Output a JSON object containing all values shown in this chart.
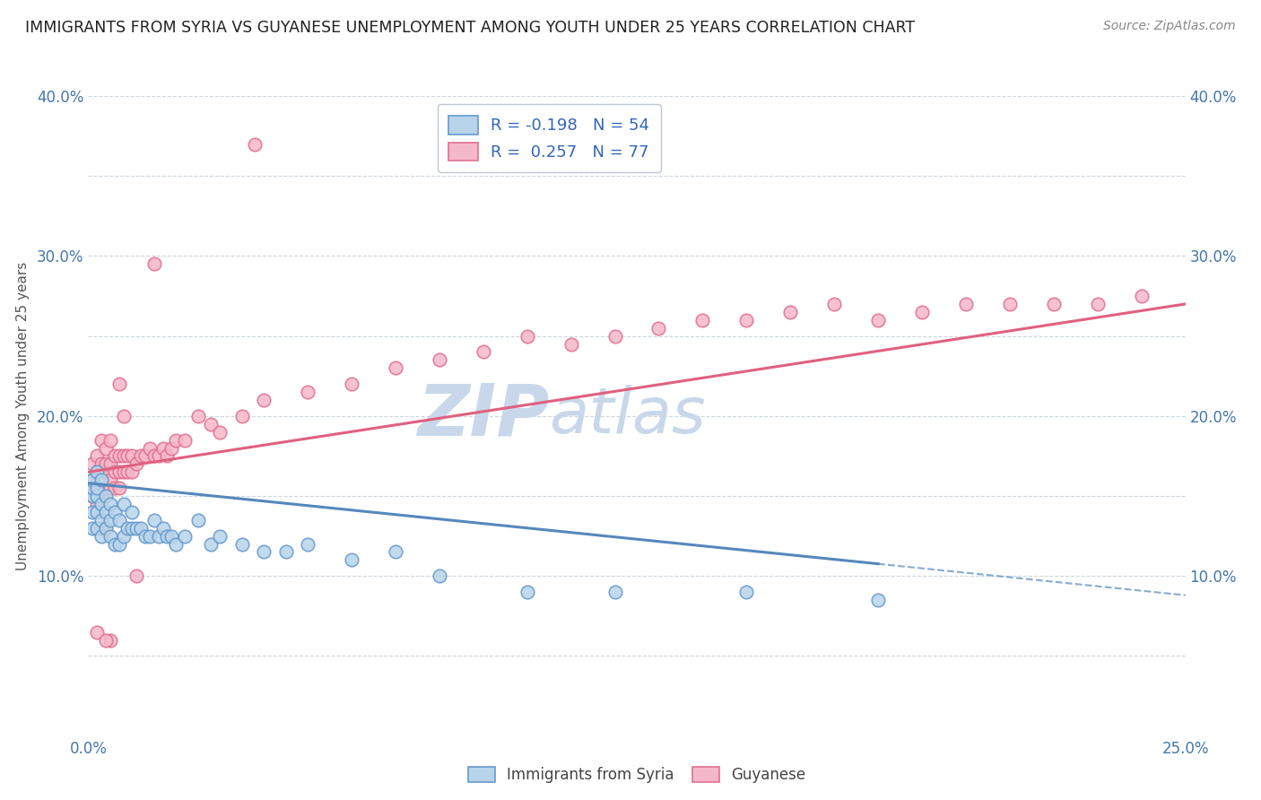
{
  "title": "IMMIGRANTS FROM SYRIA VS GUYANESE UNEMPLOYMENT AMONG YOUTH UNDER 25 YEARS CORRELATION CHART",
  "source": "Source: ZipAtlas.com",
  "ylabel": "Unemployment Among Youth under 25 years",
  "xlim": [
    0.0,
    0.25
  ],
  "ylim": [
    0.0,
    0.4
  ],
  "xticks": [
    0.0,
    0.025,
    0.05,
    0.075,
    0.1,
    0.125,
    0.15,
    0.175,
    0.2,
    0.225,
    0.25
  ],
  "yticks": [
    0.0,
    0.05,
    0.1,
    0.15,
    0.2,
    0.25,
    0.3,
    0.35,
    0.4
  ],
  "ytick_labels_left": [
    "",
    "",
    "10.0%",
    "",
    "20.0%",
    "",
    "30.0%",
    "",
    "40.0%"
  ],
  "ytick_labels_right": [
    "",
    "",
    "10.0%",
    "",
    "20.0%",
    "",
    "30.0%",
    "",
    "40.0%"
  ],
  "xtick_labels": [
    "0.0%",
    "",
    "",
    "",
    "",
    "",
    "",
    "",
    "",
    "",
    "25.0%"
  ],
  "legend_syria_R": "-0.198",
  "legend_syria_N": "54",
  "legend_guyanese_R": "0.257",
  "legend_guyanese_N": "77",
  "color_syria_fill": "#b8d4ea",
  "color_syria_edge": "#6699cc",
  "color_guyanese_fill": "#f5b8c8",
  "color_guyanese_edge": "#e07090",
  "color_syria_trendline": "#5588bb",
  "color_guyanese_trendline": "#e06080",
  "color_title": "#222222",
  "color_source": "#888888",
  "color_watermark": "#c8d8e8",
  "syria_x": [
    0.001,
    0.001,
    0.001,
    0.001,
    0.001,
    0.002,
    0.002,
    0.002,
    0.002,
    0.002,
    0.003,
    0.003,
    0.003,
    0.003,
    0.004,
    0.004,
    0.004,
    0.005,
    0.005,
    0.005,
    0.006,
    0.006,
    0.007,
    0.007,
    0.008,
    0.008,
    0.009,
    0.01,
    0.01,
    0.011,
    0.012,
    0.013,
    0.014,
    0.015,
    0.016,
    0.017,
    0.018,
    0.019,
    0.02,
    0.022,
    0.025,
    0.028,
    0.03,
    0.035,
    0.04,
    0.045,
    0.05,
    0.06,
    0.07,
    0.08,
    0.1,
    0.12,
    0.15,
    0.18
  ],
  "syria_y": [
    0.13,
    0.14,
    0.15,
    0.155,
    0.16,
    0.13,
    0.14,
    0.15,
    0.155,
    0.165,
    0.125,
    0.135,
    0.145,
    0.16,
    0.13,
    0.14,
    0.15,
    0.125,
    0.135,
    0.145,
    0.12,
    0.14,
    0.12,
    0.135,
    0.125,
    0.145,
    0.13,
    0.13,
    0.14,
    0.13,
    0.13,
    0.125,
    0.125,
    0.135,
    0.125,
    0.13,
    0.125,
    0.125,
    0.12,
    0.125,
    0.135,
    0.12,
    0.125,
    0.12,
    0.115,
    0.115,
    0.12,
    0.11,
    0.115,
    0.1,
    0.09,
    0.09,
    0.09,
    0.085
  ],
  "guyanese_x": [
    0.001,
    0.001,
    0.001,
    0.001,
    0.002,
    0.002,
    0.002,
    0.002,
    0.003,
    0.003,
    0.003,
    0.003,
    0.004,
    0.004,
    0.004,
    0.004,
    0.005,
    0.005,
    0.005,
    0.005,
    0.006,
    0.006,
    0.006,
    0.007,
    0.007,
    0.007,
    0.008,
    0.008,
    0.009,
    0.009,
    0.01,
    0.01,
    0.011,
    0.012,
    0.013,
    0.014,
    0.015,
    0.016,
    0.017,
    0.018,
    0.019,
    0.02,
    0.022,
    0.025,
    0.028,
    0.03,
    0.035,
    0.04,
    0.05,
    0.06,
    0.07,
    0.08,
    0.09,
    0.1,
    0.11,
    0.12,
    0.13,
    0.14,
    0.15,
    0.16,
    0.17,
    0.18,
    0.19,
    0.2,
    0.21,
    0.22,
    0.23,
    0.24,
    0.038,
    0.015,
    0.005,
    0.002,
    0.003,
    0.004,
    0.008,
    0.007,
    0.011
  ],
  "guyanese_y": [
    0.15,
    0.155,
    0.16,
    0.17,
    0.145,
    0.155,
    0.165,
    0.175,
    0.15,
    0.165,
    0.17,
    0.185,
    0.155,
    0.165,
    0.17,
    0.18,
    0.155,
    0.16,
    0.17,
    0.185,
    0.155,
    0.165,
    0.175,
    0.155,
    0.165,
    0.175,
    0.165,
    0.175,
    0.165,
    0.175,
    0.165,
    0.175,
    0.17,
    0.175,
    0.175,
    0.18,
    0.175,
    0.175,
    0.18,
    0.175,
    0.18,
    0.185,
    0.185,
    0.2,
    0.195,
    0.19,
    0.2,
    0.21,
    0.215,
    0.22,
    0.23,
    0.235,
    0.24,
    0.25,
    0.245,
    0.25,
    0.255,
    0.26,
    0.26,
    0.265,
    0.27,
    0.26,
    0.265,
    0.27,
    0.27,
    0.27,
    0.27,
    0.275,
    0.37,
    0.295,
    0.06,
    0.065,
    0.13,
    0.06,
    0.2,
    0.22,
    0.1
  ],
  "syria_trend_x": [
    0.0,
    0.25
  ],
  "syria_trend_y": [
    0.158,
    0.088
  ],
  "guyanese_trend_x": [
    0.0,
    0.25
  ],
  "guyanese_trend_y": [
    0.165,
    0.27
  ]
}
